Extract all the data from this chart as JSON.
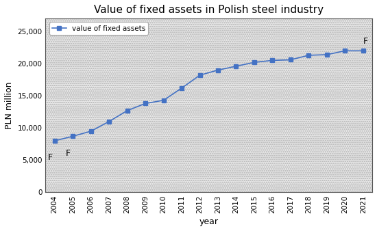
{
  "title": "Value of fixed assets in Polish steel industry",
  "xlabel": "year",
  "ylabel": "PLN million",
  "legend_label": "value of fixed assets",
  "years": [
    2004,
    2005,
    2006,
    2007,
    2008,
    2009,
    2010,
    2011,
    2012,
    2013,
    2014,
    2015,
    2016,
    2017,
    2018,
    2019,
    2020,
    2021
  ],
  "values": [
    8000,
    8700,
    9500,
    11000,
    12700,
    13800,
    14300,
    16200,
    18200,
    19000,
    19600,
    20200,
    20500,
    20600,
    21300,
    21400,
    22000,
    22000
  ],
  "line_color": "#4472c4",
  "marker": "s",
  "marker_size": 4,
  "ylim": [
    0,
    27000
  ],
  "yticks": [
    0,
    5000,
    10000,
    15000,
    20000,
    25000
  ],
  "f_annotations": [
    {
      "year_idx": 0,
      "label": "F",
      "xoffset": -0.25,
      "yoffset": -3000
    },
    {
      "year_idx": 1,
      "label": "F",
      "xoffset": -0.25,
      "yoffset": -3000
    },
    {
      "year_idx": 17,
      "label": "F",
      "xoffset": 0.15,
      "yoffset": 1100
    }
  ],
  "title_fontsize": 11,
  "axis_label_fontsize": 9,
  "tick_fontsize": 7.5
}
